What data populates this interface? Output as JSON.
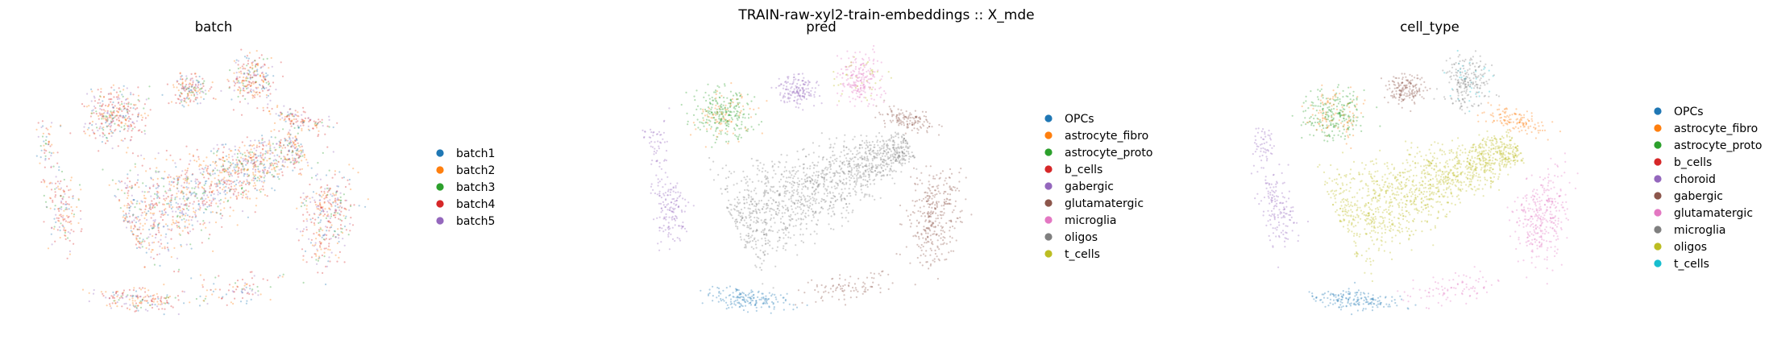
{
  "figure": {
    "suptitle": "TRAIN-raw-xyl2-train-embeddings :: X_mde"
  },
  "chart_data": [
    {
      "type": "scatter",
      "title": "batch",
      "legend": {
        "placement": "right",
        "entries": [
          {
            "label": "batch1",
            "color": "#1f77b4"
          },
          {
            "label": "batch2",
            "color": "#ff7f0e"
          },
          {
            "label": "batch3",
            "color": "#2ca02c"
          },
          {
            "label": "batch4",
            "color": "#d62728"
          },
          {
            "label": "batch5",
            "color": "#9467bd"
          }
        ]
      },
      "axes_visible": false,
      "grid": false
    },
    {
      "type": "scatter",
      "title": "pred",
      "legend": {
        "placement": "right",
        "entries": [
          {
            "label": "OPCs",
            "color": "#1f77b4"
          },
          {
            "label": "astrocyte_fibro",
            "color": "#ff7f0e"
          },
          {
            "label": "astrocyte_proto",
            "color": "#2ca02c"
          },
          {
            "label": "b_cells",
            "color": "#d62728"
          },
          {
            "label": "gabergic",
            "color": "#9467bd"
          },
          {
            "label": "glutamatergic",
            "color": "#8c564b"
          },
          {
            "label": "microglia",
            "color": "#e377c2"
          },
          {
            "label": "oligos",
            "color": "#7f7f7f"
          },
          {
            "label": "t_cells",
            "color": "#bcbd22"
          }
        ]
      },
      "axes_visible": false,
      "grid": false
    },
    {
      "type": "scatter",
      "title": "cell_type",
      "legend": {
        "placement": "right",
        "entries": [
          {
            "label": "OPCs",
            "color": "#1f77b4"
          },
          {
            "label": "astrocyte_fibro",
            "color": "#ff7f0e"
          },
          {
            "label": "astrocyte_proto",
            "color": "#2ca02c"
          },
          {
            "label": "b_cells",
            "color": "#d62728"
          },
          {
            "label": "choroid",
            "color": "#9467bd"
          },
          {
            "label": "gabergic",
            "color": "#8c564b"
          },
          {
            "label": "glutamatergic",
            "color": "#e377c2"
          },
          {
            "label": "microglia",
            "color": "#7f7f7f"
          },
          {
            "label": "oligos",
            "color": "#bcbd22"
          },
          {
            "label": "t_cells",
            "color": "#17becf"
          }
        ]
      },
      "axes_visible": false,
      "grid": false
    }
  ]
}
